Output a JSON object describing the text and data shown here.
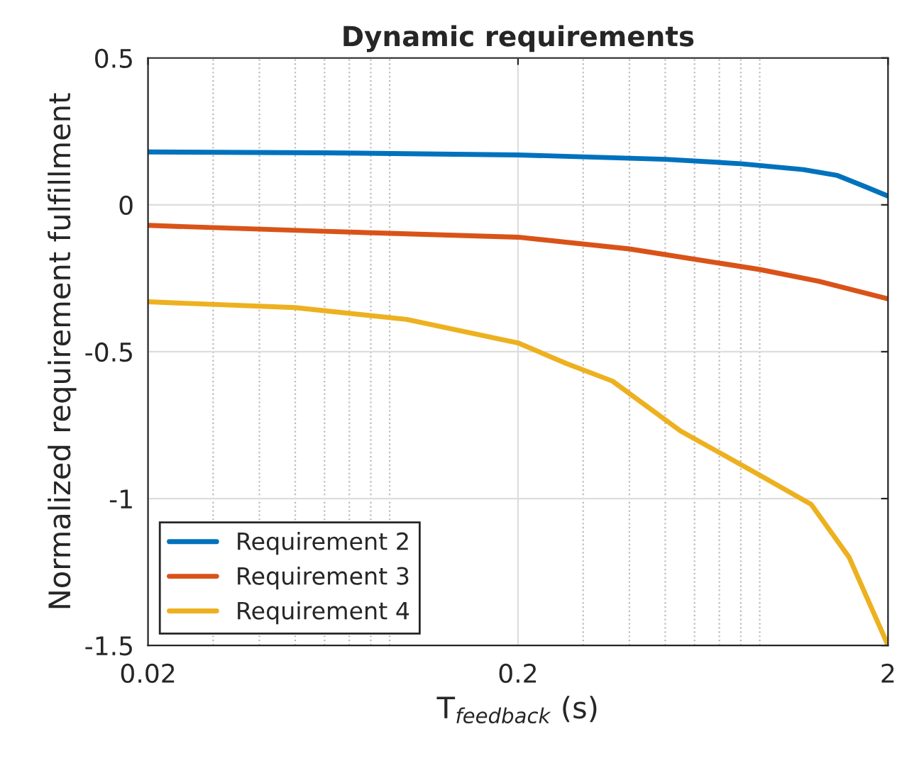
{
  "chart_data": {
    "type": "line",
    "title": "Dynamic requirements",
    "xlabel": "T$_{feedback}$ (s)",
    "ylabel": "Normalized requirement fulfillment",
    "log": "x",
    "xlim": [
      0.02,
      2
    ],
    "xticks": [
      0.02,
      0.2,
      2
    ],
    "ylim": [
      -1.5,
      0.5
    ],
    "yticks": [
      -1.5,
      -1,
      -0.5,
      0,
      0.5
    ],
    "grid": true,
    "legend": "bottom left",
    "line_style": "solid",
    "marker": "none",
    "series": [
      {
        "name": "Requirement 2",
        "color": "#0072bd",
        "x": [
          0.02,
          0.06,
          0.2,
          0.5,
          0.8,
          1.18,
          1.46,
          1.75,
          2
        ],
        "values": [
          0.18,
          0.177,
          0.17,
          0.155,
          0.14,
          0.12,
          0.1,
          0.06,
          0.03
        ]
      },
      {
        "name": "Requirement 3",
        "color": "#d95319",
        "x": [
          0.02,
          0.06,
          0.2,
          0.4,
          0.9,
          1.3,
          2
        ],
        "values": [
          -0.07,
          -0.09,
          -0.11,
          -0.15,
          -0.22,
          -0.26,
          -0.32
        ]
      },
      {
        "name": "Requirement 4",
        "color": "#edb120",
        "x": [
          0.02,
          0.05,
          0.1,
          0.2,
          0.27,
          0.36,
          0.55,
          0.9,
          1.24,
          1.57,
          2
        ],
        "values": [
          -0.33,
          -0.35,
          -0.39,
          -0.47,
          -0.54,
          -0.6,
          -0.77,
          -0.92,
          -1.02,
          -1.2,
          -1.5
        ]
      }
    ]
  }
}
